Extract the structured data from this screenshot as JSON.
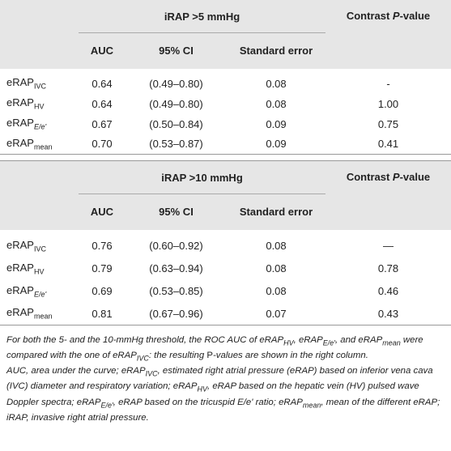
{
  "sections": [
    {
      "group_header": "iRAP >5 mmHg",
      "contrast_header": [
        "Contrast ",
        "P",
        "-value"
      ],
      "columns": [
        "AUC",
        "95% CI",
        "Standard error"
      ],
      "rows": [
        {
          "label": {
            "base": "eRAP",
            "sub": "IVC"
          },
          "cells": [
            "0.64",
            "(0.49–0.80)",
            "0.08",
            "-"
          ]
        },
        {
          "label": {
            "base": "eRAP",
            "sub": "HV"
          },
          "cells": [
            "0.64",
            "(0.49–0.80)",
            "0.08",
            "1.00"
          ]
        },
        {
          "label": {
            "base": "eRAP",
            "sub": "E/e'",
            "sub_italic": true
          },
          "cells": [
            "0.67",
            "(0.50–0.84)",
            "0.09",
            "0.75"
          ]
        },
        {
          "label": {
            "base": "eRAP",
            "sub": "mean"
          },
          "cells": [
            "0.70",
            "(0.53–0.87)",
            "0.09",
            "0.41"
          ]
        }
      ]
    },
    {
      "group_header": "iRAP >10 mmHg",
      "contrast_header": [
        "Contrast ",
        "P",
        "-value"
      ],
      "columns": [
        "AUC",
        "95% CI",
        "Standard error"
      ],
      "rows": [
        {
          "label": {
            "base": "eRAP",
            "sub": "IVC"
          },
          "cells": [
            "0.76",
            "(0.60–0.92)",
            "0.08",
            "—"
          ]
        },
        {
          "label": {
            "base": "eRAP",
            "sub": "HV"
          },
          "cells": [
            "0.79",
            "(0.63–0.94)",
            "0.08",
            "0.78"
          ]
        },
        {
          "label": {
            "base": "eRAP",
            "sub": "E/e'",
            "sub_italic": true
          },
          "cells": [
            "0.69",
            "(0.53–0.85)",
            "0.08",
            "0.46"
          ]
        },
        {
          "label": {
            "base": "eRAP",
            "sub": "mean"
          },
          "cells": [
            "0.81",
            "(0.67–0.96)",
            "0.07",
            "0.43"
          ]
        }
      ]
    }
  ],
  "footnotes": [
    [
      {
        "text": "For both the 5- and the 10-mmHg threshold, the ROC AUC of eRAP"
      },
      {
        "sub": "HV"
      },
      {
        "text": ", eRAP"
      },
      {
        "sub": "E/e'"
      },
      {
        "text": ", and eRAP"
      },
      {
        "sub": "mean"
      },
      {
        "text": " were compared with the one of eRAP"
      },
      {
        "sub": "IVC"
      },
      {
        "text": ": the resulting "
      },
      {
        "text": "P",
        "upright": true
      },
      {
        "text": "-values are shown in the right column."
      }
    ],
    [
      {
        "text": "AUC, area under the curve; eRAP"
      },
      {
        "sub": "IVC"
      },
      {
        "text": ", estimated right atrial pressure (eRAP) based on inferior vena cava (IVC) diameter and respiratory variation; eRAP"
      },
      {
        "sub": "HV"
      },
      {
        "text": ", eRAP based on the hepatic vein (HV) pulsed wave Doppler spectra; eRAP"
      },
      {
        "sub": "E/e'"
      },
      {
        "text": ", eRAP based on the tricuspid E/e' ratio; eRAP"
      },
      {
        "sub": "mean"
      },
      {
        "text": ", mean of the different eRAP; iRAP, invasive right atrial pressure."
      }
    ]
  ]
}
